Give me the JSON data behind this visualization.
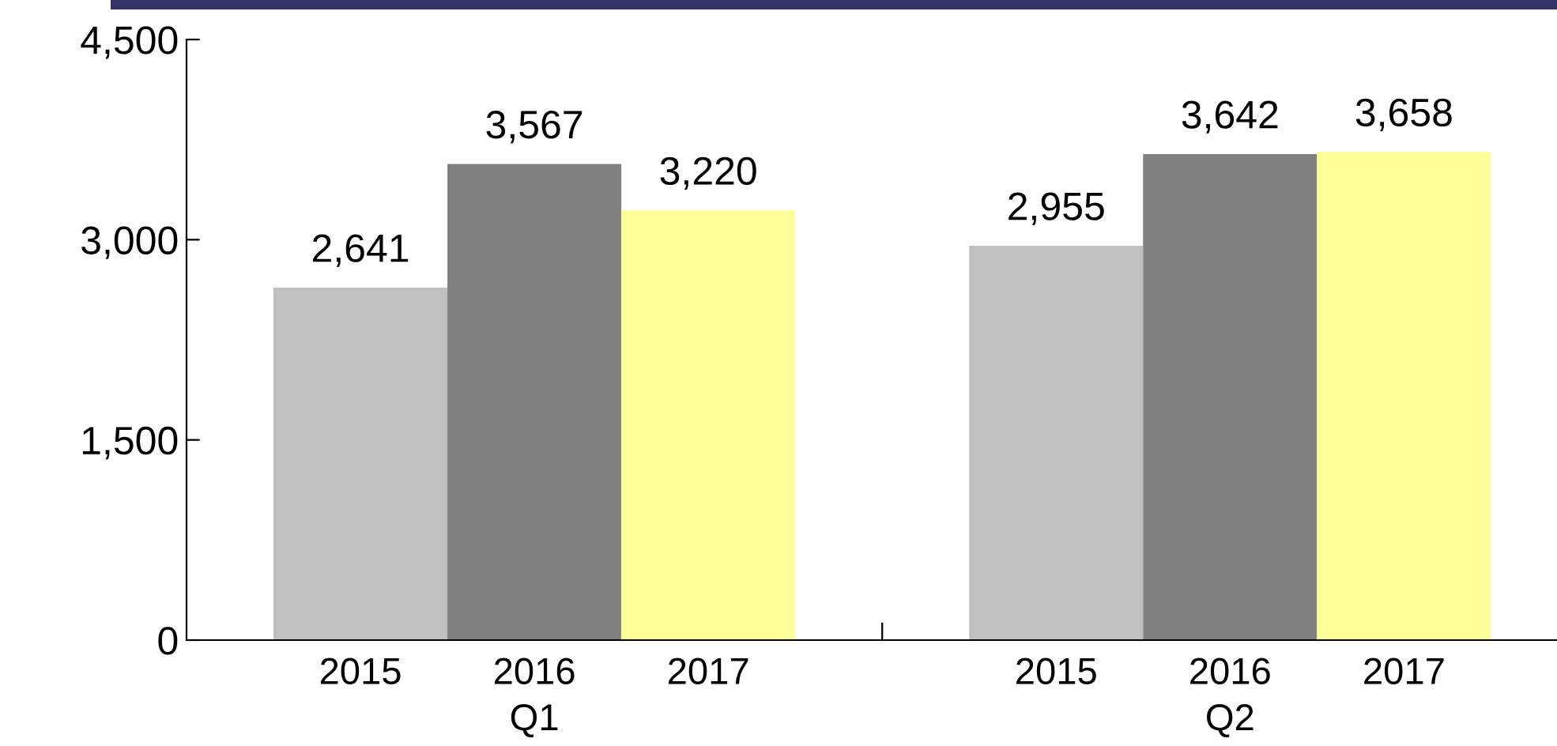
{
  "chart_data": {
    "type": "bar",
    "categories": [
      "Q1",
      "Q2"
    ],
    "series": [
      {
        "name": "2015",
        "color": "#c0c0c0",
        "values": [
          2641,
          2955
        ],
        "value_labels": [
          "2,641",
          "2,955"
        ]
      },
      {
        "name": "2016",
        "color": "#808080",
        "values": [
          3567,
          3642
        ],
        "value_labels": [
          "3,567",
          "3,642"
        ]
      },
      {
        "name": "2017",
        "color": "#ffff99",
        "values": [
          3220,
          3658
        ],
        "value_labels": [
          "3,220",
          "3,658"
        ]
      }
    ],
    "ylim": [
      0,
      4500
    ],
    "yticks": [
      0,
      {
        "value": 1500,
        "label": "1,500"
      },
      {
        "value": 3000,
        "label": "3,000"
      },
      {
        "value": 4500,
        "label": "4,500"
      }
    ],
    "legend": false,
    "grid": false
  }
}
